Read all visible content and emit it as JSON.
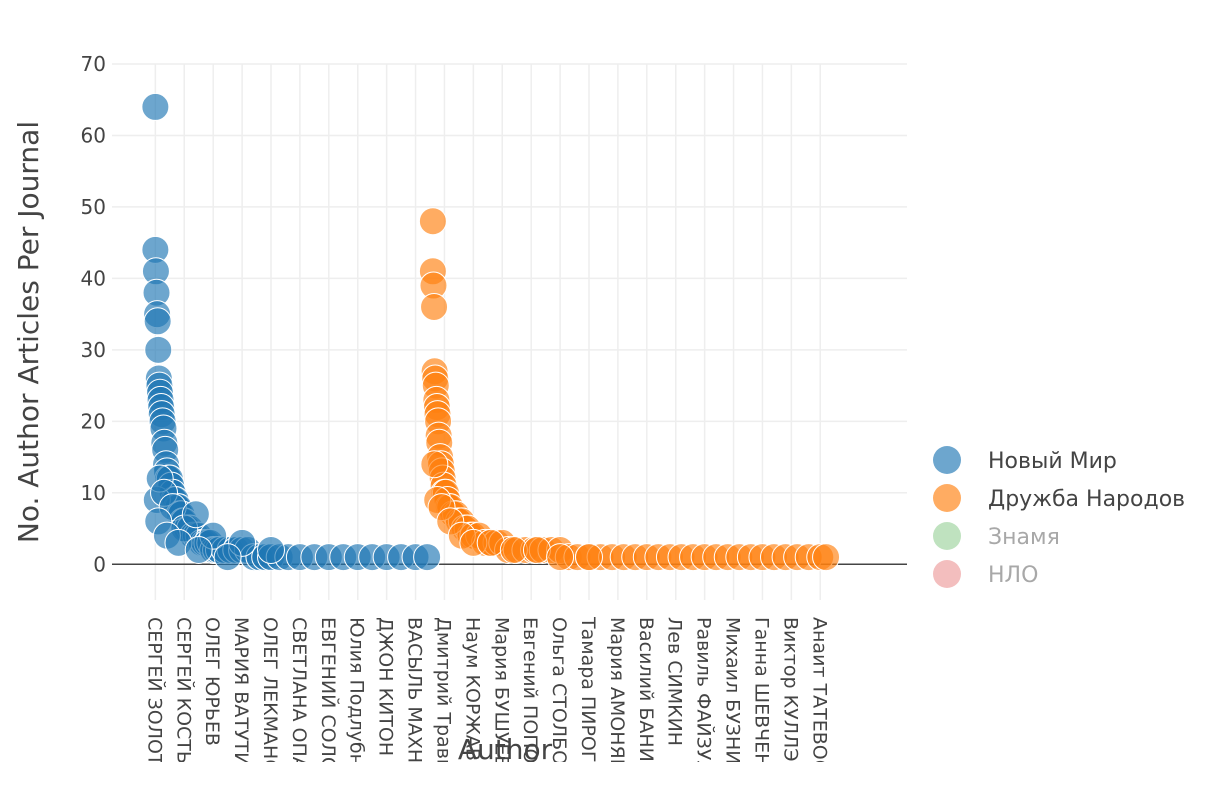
{
  "chart_data": {
    "type": "scatter",
    "title": "",
    "xlabel": "Author",
    "ylabel": "No. Author Articles Per Journal",
    "ylim": [
      -5,
      70
    ],
    "yticks": [
      0,
      10,
      20,
      30,
      40,
      50,
      60,
      70
    ],
    "grid": true,
    "legend_placement": "right",
    "categories": [
      "СЕРГЕЙ ЗОЛОТАРЕВ",
      "СЕРГЕЙ КОСТЫРКО",
      "ОЛЕГ ЮРЬЕВ",
      "МАРИЯ ВАТУТИНА",
      "ОЛЕГ ЛЕКМАНОВ",
      "СВЕТЛАНА ОПАТАН",
      "ЕВГЕНИЙ СОЛОНОВИЧ",
      "Юлия Подлубнова",
      "ДЖОН КИТОН",
      "ВАСЫЛЬ МАХНО",
      "Дмитрий Травин",
      "Наум КОРЖАВИН",
      "Мария БУШУЕВА",
      "Евгений ПОПОВ",
      "Ольга СТОЛБОВА",
      "Тамара ПИРОГОВА",
      "Мария АМОНЯН",
      "Василий БАНИН",
      "Лев СИМКИН",
      "Равиль ФАЙЗУЛЛИН",
      "Михаил БУЗНИК",
      "Ганна ШЕВЧЕНКО",
      "Виктор КУЛЛЭ",
      "Анаит ТАТЕВОСЯН"
    ],
    "series": [
      {
        "name": "Новый Мир",
        "color": "#1f77b4",
        "visible": true,
        "x": [
          0.0,
          0.0,
          0.02,
          0.04,
          0.06,
          0.08,
          0.1,
          0.12,
          0.14,
          0.16,
          0.18,
          0.2,
          0.22,
          0.25,
          0.28,
          0.31,
          0.34,
          0.37,
          0.4,
          0.45,
          0.5,
          0.55,
          0.6,
          0.65,
          0.7,
          0.75,
          0.8,
          0.85,
          0.9,
          0.95,
          1.0,
          1.1,
          1.2,
          1.3,
          1.4,
          1.5,
          1.6,
          1.7,
          1.8,
          1.9,
          2.0,
          2.1,
          2.2,
          2.4,
          2.6,
          2.8,
          3.0,
          3.2,
          3.4,
          3.6,
          3.8,
          4.0,
          4.3,
          4.6,
          5.0,
          5.5,
          6.0,
          6.5,
          7.0,
          7.5,
          8.0,
          8.5,
          9.0,
          9.4,
          0.05,
          0.15,
          0.3,
          0.6,
          1.0,
          1.4,
          2.0,
          3.0,
          4.0,
          0.1,
          0.4,
          0.8,
          1.5,
          2.5
        ],
        "y": [
          64,
          44,
          41,
          38,
          35,
          34,
          30,
          26,
          25,
          24,
          23,
          22,
          21,
          20,
          19,
          17,
          16,
          14,
          13,
          12,
          12,
          11,
          10,
          9,
          9,
          8,
          8,
          7,
          7,
          6,
          6,
          5,
          5,
          4,
          4,
          4,
          3,
          3,
          3,
          3,
          2,
          2,
          2,
          2,
          2,
          2,
          2,
          2,
          1,
          1,
          1,
          1,
          1,
          1,
          1,
          1,
          1,
          1,
          1,
          1,
          1,
          1,
          1,
          1,
          9,
          12,
          10,
          8,
          5,
          7,
          4,
          3,
          2,
          6,
          4,
          3,
          2,
          1
        ]
      },
      {
        "name": "Дружба Народов",
        "color": "#ff7f0e",
        "visible": true,
        "x": [
          9.6,
          9.6,
          9.62,
          9.64,
          9.66,
          9.68,
          9.7,
          9.72,
          9.74,
          9.76,
          9.78,
          9.8,
          9.82,
          9.85,
          9.88,
          9.91,
          9.94,
          9.97,
          10.0,
          10.05,
          10.1,
          10.15,
          10.2,
          10.3,
          10.4,
          10.5,
          10.6,
          10.7,
          10.8,
          10.9,
          11.0,
          11.2,
          11.4,
          11.6,
          11.8,
          12.0,
          12.2,
          12.5,
          12.8,
          13.1,
          13.4,
          13.7,
          14.0,
          14.3,
          14.6,
          15.0,
          15.4,
          15.8,
          16.2,
          16.6,
          17.0,
          17.4,
          17.8,
          18.2,
          18.6,
          19.0,
          19.4,
          19.8,
          20.2,
          20.6,
          21.0,
          21.4,
          21.8,
          22.2,
          22.6,
          23.0,
          23.2,
          9.65,
          9.75,
          9.9,
          10.2,
          10.6,
          11.0,
          11.6,
          12.4,
          13.2,
          14.0,
          15.0
        ],
        "y": [
          48,
          41,
          39,
          36,
          27,
          26,
          25,
          23,
          22,
          21,
          20,
          18,
          17,
          15,
          14,
          13,
          12,
          11,
          10,
          10,
          9,
          8,
          8,
          7,
          7,
          6,
          6,
          5,
          5,
          4,
          4,
          4,
          3,
          3,
          3,
          3,
          2,
          2,
          2,
          2,
          2,
          2,
          2,
          1,
          1,
          1,
          1,
          1,
          1,
          1,
          1,
          1,
          1,
          1,
          1,
          1,
          1,
          1,
          1,
          1,
          1,
          1,
          1,
          1,
          1,
          1,
          1,
          14,
          9,
          8,
          6,
          4,
          3,
          3,
          2,
          2,
          1,
          1
        ]
      },
      {
        "name": "Знамя",
        "color": "#2ca02c",
        "visible": false,
        "x": [],
        "y": []
      },
      {
        "name": "НЛО",
        "color": "#d62728",
        "visible": false,
        "x": [],
        "y": []
      }
    ]
  }
}
